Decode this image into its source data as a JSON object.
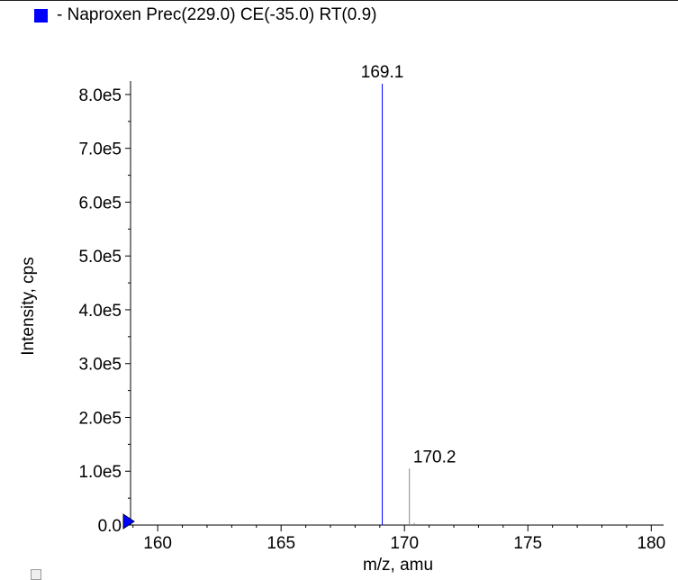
{
  "legend": {
    "label": "- Naproxen Prec(229.0) CE(-35.0) RT(0.9)",
    "color": "#0000ff"
  },
  "chart_data": {
    "type": "bar",
    "title": "",
    "xlabel": "m/z, amu",
    "ylabel": "Intensity, cps",
    "xlim": [
      158.9,
      180.5
    ],
    "ylim": [
      0,
      825000.0
    ],
    "x_ticks": [
      160,
      165,
      170,
      175,
      180
    ],
    "x_tick_labels": [
      "160",
      "165",
      "170",
      "175",
      "180"
    ],
    "y_ticks": [
      0,
      100000,
      200000,
      300000,
      400000,
      500000,
      600000,
      700000,
      800000
    ],
    "y_tick_labels": [
      "0.0",
      "1.0e5",
      "2.0e5",
      "3.0e5",
      "4.0e5",
      "5.0e5",
      "6.0e5",
      "7.0e5",
      "8.0e5"
    ],
    "series": [
      {
        "name": "- Naproxen Prec(229.0) CE(-35.0) RT(0.9)",
        "color": "#0000ff",
        "points": [
          {
            "x": 169.1,
            "y": 820000,
            "label": "169.1"
          },
          {
            "x": 170.2,
            "y": 105000,
            "label": "170.2"
          },
          {
            "x": 170.4,
            "y": 4000,
            "label": ""
          }
        ]
      }
    ],
    "grid": false
  }
}
